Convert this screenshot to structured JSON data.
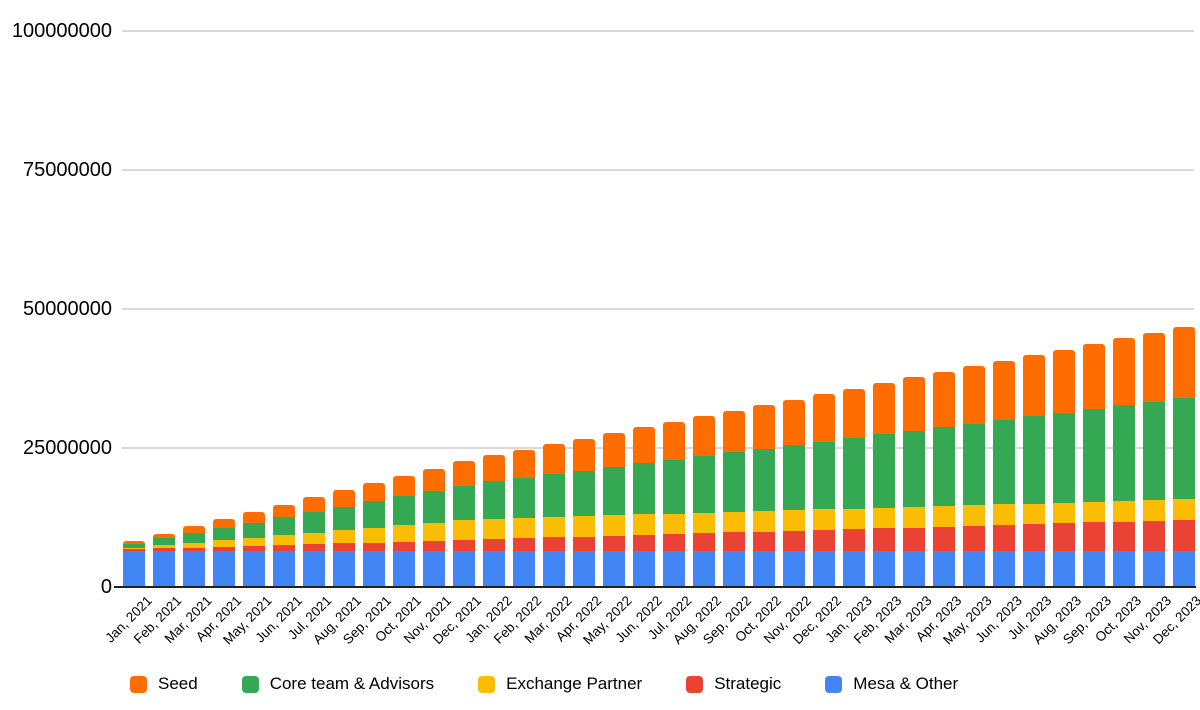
{
  "chart_data": {
    "type": "bar",
    "stacked": true,
    "title": "",
    "grid": true,
    "legend_position": "bottom",
    "ylim": [
      0,
      100000000
    ],
    "yticks": [
      0,
      25000000,
      50000000,
      75000000,
      100000000
    ],
    "ytick_labels": [
      "0",
      "25000000",
      "50000000",
      "75000000",
      "100000000"
    ],
    "categories": [
      "Jan, 2021",
      "Feb, 2021",
      "Mar, 2021",
      "Apr, 2021",
      "May, 2021",
      "Jun, 2021",
      "Jul, 2021",
      "Aug, 2021",
      "Sep, 2021",
      "Oct, 2021",
      "Nov, 2021",
      "Dec, 2021",
      "Jan, 2022",
      "Feb, 2022",
      "Mar, 2022",
      "Apr, 2022",
      "May, 2022",
      "Jun, 2022",
      "Jul, 2022",
      "Aug, 2022",
      "Sep, 2022",
      "Oct, 2022",
      "Nov, 2022",
      "Dec, 2022",
      "Jan, 2023",
      "Feb, 2023",
      "Mar, 2023",
      "Apr, 2023",
      "May, 2023",
      "Jun, 2023",
      "Jul, 2023",
      "Aug, 2023",
      "Sep, 2023",
      "Oct, 2023",
      "Nov, 2023",
      "Dec, 2023"
    ],
    "stack_order_bottom_to_top": [
      "Mesa & Other",
      "Strategic",
      "Exchange Partner",
      "Core team & Advisors",
      "Seed"
    ],
    "series": [
      {
        "name": "Seed",
        "color": "#FF6D01",
        "values": [
          500000,
          850000,
          1200000,
          1550000,
          1900000,
          2250000,
          2600000,
          2950000,
          3300000,
          3650000,
          4000000,
          4350000,
          4700000,
          5050000,
          5400000,
          5750000,
          6100000,
          6450000,
          6800000,
          7150000,
          7500000,
          7850000,
          8200000,
          8550000,
          8900000,
          9250000,
          9600000,
          9950000,
          10300000,
          10650000,
          11000000,
          11350000,
          11700000,
          12050000,
          12400000,
          12750000
        ]
      },
      {
        "name": "Core team & Advisors",
        "color": "#34A853",
        "values": [
          700000,
          1200000,
          1700000,
          2200000,
          2700000,
          3200000,
          3700000,
          4200000,
          4700000,
          5200000,
          5700000,
          6200000,
          6700000,
          7200000,
          7700000,
          8200000,
          8700000,
          9200000,
          9700000,
          10200000,
          10700000,
          11200000,
          11700000,
          12200000,
          12700000,
          13200000,
          13700000,
          14200000,
          14700000,
          15200000,
          15700000,
          16200000,
          16700000,
          17200000,
          17700000,
          18200000
        ]
      },
      {
        "name": "Exchange Partner",
        "color": "#FBBC04",
        "values": [
          300000,
          600000,
          900000,
          1200000,
          1500000,
          1800000,
          2100000,
          2400000,
          2700000,
          3000000,
          3300000,
          3600000,
          3700000,
          3700000,
          3700000,
          3700000,
          3700000,
          3700000,
          3700000,
          3700000,
          3700000,
          3700000,
          3700000,
          3700000,
          3700000,
          3700000,
          3700000,
          3700000,
          3700000,
          3700000,
          3700000,
          3700000,
          3700000,
          3700000,
          3700000,
          3700000
        ]
      },
      {
        "name": "Strategic",
        "color": "#EA4335",
        "values": [
          300000,
          450000,
          600000,
          750000,
          900000,
          1050000,
          1200000,
          1350000,
          1500000,
          1650000,
          1800000,
          1950000,
          2100000,
          2250000,
          2400000,
          2550000,
          2700000,
          2850000,
          3000000,
          3150000,
          3300000,
          3450000,
          3600000,
          3750000,
          3900000,
          4050000,
          4200000,
          4350000,
          4500000,
          4650000,
          4800000,
          4950000,
          5100000,
          5250000,
          5400000,
          5550000
        ]
      },
      {
        "name": "Mesa & Other",
        "color": "#4285F4",
        "values": [
          6500000,
          6500000,
          6500000,
          6500000,
          6500000,
          6500000,
          6500000,
          6500000,
          6500000,
          6500000,
          6500000,
          6500000,
          6500000,
          6500000,
          6500000,
          6500000,
          6500000,
          6500000,
          6500000,
          6500000,
          6500000,
          6500000,
          6500000,
          6500000,
          6500000,
          6500000,
          6500000,
          6500000,
          6500000,
          6500000,
          6500000,
          6500000,
          6500000,
          6500000,
          6500000,
          6500000
        ]
      }
    ],
    "legend": [
      "Seed",
      "Core team & Advisors",
      "Exchange Partner",
      "Strategic",
      "Mesa & Other"
    ]
  }
}
